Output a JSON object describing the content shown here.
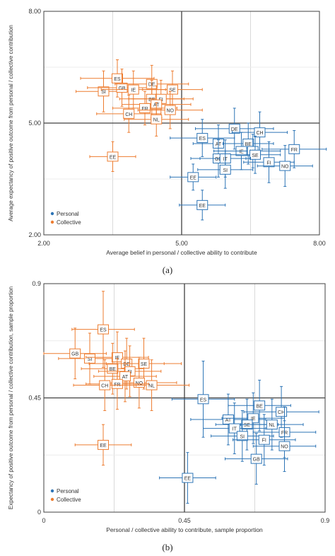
{
  "colors": {
    "personal": "#2e75b6",
    "collective": "#ed7d31",
    "grid": "#d9d9d9",
    "axis": "#404040"
  },
  "chart_data": [
    {
      "type": "scatter",
      "caption": "(a)",
      "xlabel": "Average belief in personal / collective ability to contribute",
      "ylabel": "Average expectancy of positive outcome  from personal / collective contribution",
      "xlim": [
        2.0,
        8.0
      ],
      "ylim": [
        2.0,
        8.0
      ],
      "xticks": [
        "2.00",
        "5.00",
        "8.00"
      ],
      "yticks": [
        "2.00",
        "5.00",
        "8.00"
      ],
      "grid": true,
      "legend_position": "bottom-left",
      "series": [
        {
          "name": "Personal",
          "color_key": "personal",
          "points": [
            {
              "label": "EE",
              "x": 5.25,
              "y": 3.55,
              "ex": 0.5,
              "ey": 0.35
            },
            {
              "label": "ES",
              "x": 5.45,
              "y": 4.6,
              "ex": 0.7,
              "ey": 0.5
            },
            {
              "label": "DE",
              "x": 6.15,
              "y": 4.85,
              "ex": 0.85,
              "ey": 0.55
            },
            {
              "label": "CH",
              "x": 6.7,
              "y": 4.75,
              "ex": 0.6,
              "ey": 0.55
            },
            {
              "label": "AT",
              "x": 5.8,
              "y": 4.45,
              "ex": 0.55,
              "ey": 0.5
            },
            {
              "label": "BE",
              "x": 6.45,
              "y": 4.45,
              "ex": 0.55,
              "ey": 0.55
            },
            {
              "label": "IE",
              "x": 6.3,
              "y": 4.25,
              "ex": 0.6,
              "ey": 0.5
            },
            {
              "label": "NL",
              "x": 6.55,
              "y": 4.25,
              "ex": 0.6,
              "ey": 0.45
            },
            {
              "label": "SE",
              "x": 6.6,
              "y": 4.15,
              "ex": 0.55,
              "ey": 0.5
            },
            {
              "label": "GB",
              "x": 5.8,
              "y": 4.05,
              "ex": 0.6,
              "ey": 0.5
            },
            {
              "label": "IT",
              "x": 5.95,
              "y": 4.05,
              "ex": 0.55,
              "ey": 0.5
            },
            {
              "label": "FR",
              "x": 7.45,
              "y": 4.3,
              "ex": 0.7,
              "ey": 0.5
            },
            {
              "label": "FI",
              "x": 6.9,
              "y": 3.95,
              "ex": 0.55,
              "ey": 0.55
            },
            {
              "label": "NO",
              "x": 7.25,
              "y": 3.85,
              "ex": 0.6,
              "ey": 0.55
            },
            {
              "label": "SI",
              "x": 5.95,
              "y": 3.75,
              "ex": 0.6,
              "ey": 0.5
            },
            {
              "label": "EE",
              "x": 5.45,
              "y": 2.8,
              "ex": 0.5,
              "ey": 0.4
            }
          ]
        },
        {
          "name": "Collective",
          "color_key": "collective",
          "points": [
            {
              "label": "ES",
              "x": 3.6,
              "y": 6.2,
              "ex": 0.8,
              "ey": 0.5
            },
            {
              "label": "SI",
              "x": 3.3,
              "y": 5.85,
              "ex": 0.6,
              "ey": 0.55
            },
            {
              "label": "GB",
              "x": 3.7,
              "y": 5.95,
              "ex": 0.75,
              "ey": 0.5
            },
            {
              "label": "IE",
              "x": 3.95,
              "y": 5.9,
              "ex": 0.7,
              "ey": 0.5
            },
            {
              "label": "DE",
              "x": 4.35,
              "y": 6.05,
              "ex": 0.8,
              "ey": 0.5
            },
            {
              "label": "SE",
              "x": 4.8,
              "y": 5.9,
              "ex": 0.65,
              "ey": 0.5
            },
            {
              "label": "BE",
              "x": 4.35,
              "y": 5.65,
              "ex": 0.7,
              "ey": 0.5
            },
            {
              "label": "FI",
              "x": 4.55,
              "y": 5.65,
              "ex": 0.7,
              "ey": 0.5
            },
            {
              "label": "AT",
              "x": 4.45,
              "y": 5.5,
              "ex": 0.75,
              "ey": 0.5
            },
            {
              "label": "FR",
              "x": 4.2,
              "y": 5.4,
              "ex": 0.7,
              "ey": 0.45
            },
            {
              "label": "NO",
              "x": 4.75,
              "y": 5.35,
              "ex": 0.7,
              "ey": 0.5
            },
            {
              "label": "CH",
              "x": 3.85,
              "y": 5.25,
              "ex": 0.7,
              "ey": 0.5
            },
            {
              "label": "NL",
              "x": 4.45,
              "y": 5.1,
              "ex": 0.7,
              "ey": 0.45
            },
            {
              "label": "EE",
              "x": 3.5,
              "y": 4.1,
              "ex": 0.5,
              "ey": 0.4
            }
          ]
        }
      ]
    },
    {
      "type": "scatter",
      "caption": "(b)",
      "xlabel": "Personal / collective ability to contribute,  sample proportion",
      "ylabel": "Expectancy of positive outcome  from personal / collective contribution, sample proportion",
      "xlim": [
        0,
        0.9
      ],
      "ylim": [
        0,
        0.9
      ],
      "xticks": [
        "0",
        "0.45",
        "0.9"
      ],
      "yticks": [
        "0",
        "0.45",
        "0.9"
      ],
      "grid": true,
      "legend_position": "bottom-left",
      "series": [
        {
          "name": "Personal",
          "color_key": "personal",
          "points": [
            {
              "label": "ES",
              "x": 0.51,
              "y": 0.445,
              "ex": 0.1,
              "ey": 0.15
            },
            {
              "label": "BE",
              "x": 0.69,
              "y": 0.42,
              "ex": 0.1,
              "ey": 0.1
            },
            {
              "label": "CH",
              "x": 0.76,
              "y": 0.395,
              "ex": 0.12,
              "ey": 0.1
            },
            {
              "label": "AT",
              "x": 0.59,
              "y": 0.365,
              "ex": 0.12,
              "ey": 0.1
            },
            {
              "label": "IE",
              "x": 0.67,
              "y": 0.37,
              "ex": 0.1,
              "ey": 0.1
            },
            {
              "label": "SE",
              "x": 0.65,
              "y": 0.345,
              "ex": 0.1,
              "ey": 0.1
            },
            {
              "label": "NL",
              "x": 0.73,
              "y": 0.345,
              "ex": 0.1,
              "ey": 0.1
            },
            {
              "label": "IT",
              "x": 0.61,
              "y": 0.33,
              "ex": 0.1,
              "ey": 0.1
            },
            {
              "label": "FR",
              "x": 0.77,
              "y": 0.315,
              "ex": 0.1,
              "ey": 0.1
            },
            {
              "label": "SI",
              "x": 0.635,
              "y": 0.3,
              "ex": 0.1,
              "ey": 0.1
            },
            {
              "label": "FI",
              "x": 0.705,
              "y": 0.285,
              "ex": 0.1,
              "ey": 0.1
            },
            {
              "label": "NO",
              "x": 0.77,
              "y": 0.26,
              "ex": 0.1,
              "ey": 0.1
            },
            {
              "label": "GB",
              "x": 0.68,
              "y": 0.21,
              "ex": 0.1,
              "ey": 0.1
            },
            {
              "label": "EE",
              "x": 0.46,
              "y": 0.135,
              "ex": 0.09,
              "ey": 0.1
            }
          ]
        },
        {
          "name": "Collective",
          "color_key": "collective",
          "points": [
            {
              "label": "ES",
              "x": 0.19,
              "y": 0.72,
              "ex": 0.1,
              "ey": 0.15
            },
            {
              "label": "GB",
              "x": 0.1,
              "y": 0.625,
              "ex": 0.1,
              "ey": 0.1
            },
            {
              "label": "SI",
              "x": 0.147,
              "y": 0.605,
              "ex": 0.1,
              "ey": 0.1
            },
            {
              "label": "IE",
              "x": 0.235,
              "y": 0.61,
              "ex": 0.1,
              "ey": 0.1
            },
            {
              "label": "DE",
              "x": 0.265,
              "y": 0.585,
              "ex": 0.12,
              "ey": 0.1
            },
            {
              "label": "SE",
              "x": 0.32,
              "y": 0.585,
              "ex": 0.12,
              "ey": 0.1
            },
            {
              "label": "BE",
              "x": 0.22,
              "y": 0.565,
              "ex": 0.1,
              "ey": 0.1
            },
            {
              "label": "FI",
              "x": 0.275,
              "y": 0.555,
              "ex": 0.1,
              "ey": 0.1
            },
            {
              "label": "AT",
              "x": 0.26,
              "y": 0.535,
              "ex": 0.1,
              "ey": 0.1
            },
            {
              "label": "NO",
              "x": 0.305,
              "y": 0.51,
              "ex": 0.12,
              "ey": 0.1
            },
            {
              "label": "NL",
              "x": 0.345,
              "y": 0.5,
              "ex": 0.12,
              "ey": 0.1
            },
            {
              "label": "FR",
              "x": 0.235,
              "y": 0.505,
              "ex": 0.1,
              "ey": 0.1
            },
            {
              "label": "CH",
              "x": 0.195,
              "y": 0.5,
              "ex": 0.1,
              "ey": 0.1
            },
            {
              "label": "EE",
              "x": 0.19,
              "y": 0.265,
              "ex": 0.09,
              "ey": 0.08
            }
          ]
        }
      ]
    }
  ]
}
